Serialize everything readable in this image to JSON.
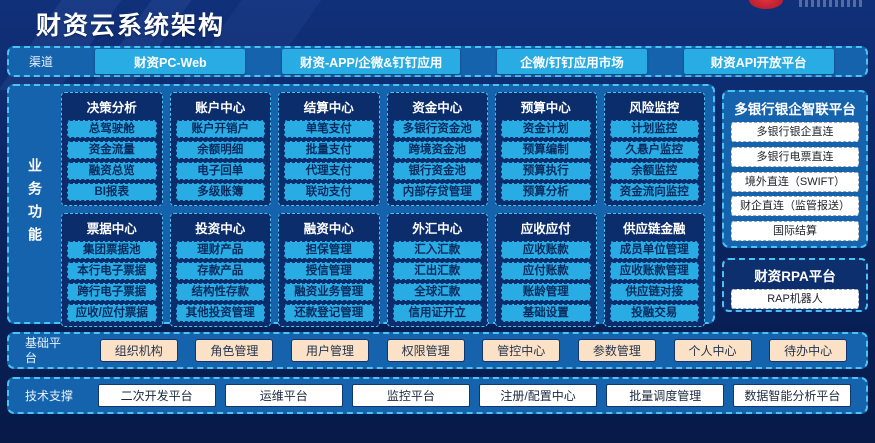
{
  "header": {
    "title": "财资云系统架构"
  },
  "channels": {
    "label": "渠道",
    "items": [
      "财资PC-Web",
      "财资-APP/企微&钉钉应用",
      "企微/钉钉应用市场",
      "财资API开放平台"
    ]
  },
  "business": {
    "label": "业务功能",
    "groups": [
      {
        "title": "决策分析",
        "items": [
          "总驾驶舱",
          "资金流量",
          "融资总览",
          "BI报表"
        ]
      },
      {
        "title": "账户中心",
        "items": [
          "账户开销户",
          "余额明细",
          "电子回单",
          "多级账簿"
        ]
      },
      {
        "title": "结算中心",
        "items": [
          "单笔支付",
          "批量支付",
          "代理支付",
          "联动支付"
        ]
      },
      {
        "title": "资金中心",
        "items": [
          "多银行资金池",
          "跨境资金池",
          "银行资金池",
          "内部存贷管理"
        ]
      },
      {
        "title": "预算中心",
        "items": [
          "资金计划",
          "预算编制",
          "预算执行",
          "预算分析"
        ]
      },
      {
        "title": "风险监控",
        "items": [
          "计划监控",
          "久悬户监控",
          "余额监控",
          "资金流向监控"
        ]
      },
      {
        "title": "票据中心",
        "items": [
          "集团票据池",
          "本行电子票据",
          "跨行电子票据",
          "应收/应付票据"
        ]
      },
      {
        "title": "投资中心",
        "items": [
          "理财产品",
          "存款产品",
          "结构性存款",
          "其他投资管理"
        ]
      },
      {
        "title": "融资中心",
        "items": [
          "担保管理",
          "授信管理",
          "融资业务管理",
          "还款登记管理"
        ]
      },
      {
        "title": "外汇中心",
        "items": [
          "汇入汇款",
          "汇出汇款",
          "全球汇款",
          "信用证开立"
        ]
      },
      {
        "title": "应收应付",
        "items": [
          "应收账款",
          "应付账款",
          "账龄管理",
          "基础设置"
        ]
      },
      {
        "title": "供应链金融",
        "items": [
          "成员单位管理",
          "应收账款管理",
          "供应链对接",
          "投融交易"
        ]
      }
    ]
  },
  "bank_platform": {
    "title": "多银行银企智联平台",
    "items": [
      "多银行银企直连",
      "多银行电票直连",
      "境外直连（SWIFT）",
      "财企直连（监管报送）",
      "国际结算"
    ]
  },
  "rpa_platform": {
    "title": "财资RPA平台",
    "items": [
      "RAP机器人"
    ]
  },
  "base_platform": {
    "label": "基础平台",
    "items": [
      "组织机构",
      "角色管理",
      "用户管理",
      "权限管理",
      "管控中心",
      "参数管理",
      "个人中心",
      "待办中心"
    ]
  },
  "tech_support": {
    "label": "技术支撑",
    "items": [
      "二次开发平台",
      "运维平台",
      "监控平台",
      "注册/配置中心",
      "批量调度管理",
      "数据智能分析平台"
    ]
  },
  "colors": {
    "accent_cyan": "#29abe3",
    "border_cyan": "#49c3f1",
    "panel_blue": "#1563ac",
    "group_navy": "#0c2d6b",
    "peach": "#fbe2c6",
    "logo_red": "#d5232e"
  }
}
